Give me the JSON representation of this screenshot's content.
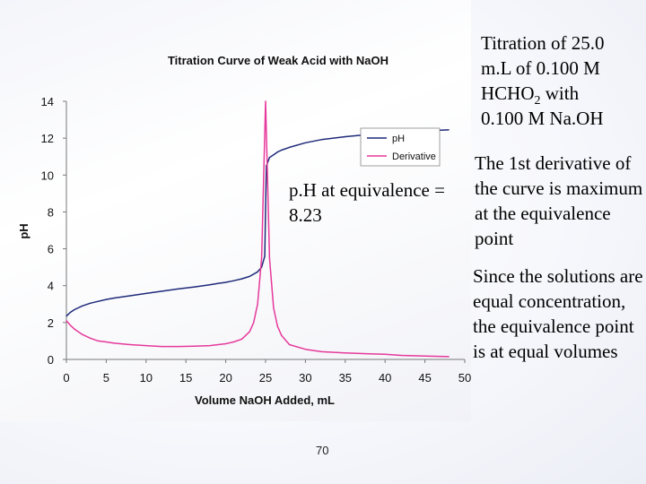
{
  "slide": {
    "titration_lines": [
      "Titration of  25.0",
      "m.L of 0.100 M",
      "HCHO",
      "2",
      " with",
      "0.100 M Na.OH"
    ],
    "derivative_note": "The 1st derivative of the curve is maximum at the equivalence point",
    "equal_volume_note": "Since the solutions are equal concentration, the equivalence point is at equal volumes",
    "equivalence_annotation": "p.H at equivalence = 8.23",
    "page_number": "70"
  },
  "chart_data": {
    "type": "line",
    "title": "Titration Curve of Weak Acid with NaOH",
    "xlabel": "Volume NaOH Added, mL",
    "ylabel": "pH",
    "xlim": [
      0,
      50
    ],
    "ylim": [
      0,
      14
    ],
    "xticks": [
      "0",
      "5",
      "10",
      "15",
      "20",
      "25",
      "30",
      "35",
      "40",
      "45",
      "50"
    ],
    "yticks": [
      "0",
      "2",
      "4",
      "6",
      "8",
      "10",
      "12",
      "14"
    ],
    "legend_position": "top-right",
    "colors": {
      "ph": "#1f2a7a",
      "derivative": "#e6399b"
    },
    "series": [
      {
        "name": "pH",
        "x": [
          0,
          0.5,
          1,
          2,
          3,
          4,
          5,
          6,
          8,
          10,
          12,
          14,
          16,
          18,
          19,
          20,
          21,
          22,
          23,
          24,
          24.5,
          24.9,
          25,
          25.1,
          25.5,
          26,
          26.5,
          27,
          28,
          30,
          32,
          35,
          38,
          40,
          45,
          48
        ],
        "y": [
          2.35,
          2.55,
          2.7,
          2.9,
          3.05,
          3.15,
          3.25,
          3.33,
          3.45,
          3.58,
          3.7,
          3.82,
          3.93,
          4.05,
          4.12,
          4.18,
          4.27,
          4.37,
          4.5,
          4.75,
          5.0,
          5.6,
          8.23,
          10.5,
          10.95,
          11.1,
          11.25,
          11.35,
          11.5,
          11.75,
          11.92,
          12.08,
          12.2,
          12.27,
          12.4,
          12.45
        ]
      },
      {
        "name": "Derivative",
        "x": [
          0,
          0.5,
          1,
          2,
          3,
          4,
          5,
          6,
          8,
          10,
          12,
          14,
          16,
          18,
          20,
          21,
          22,
          23,
          23.5,
          24,
          24.5,
          25,
          25.5,
          26,
          26.5,
          27,
          28,
          30,
          32,
          35,
          38,
          40,
          42,
          45,
          48
        ],
        "y": [
          2.1,
          1.85,
          1.65,
          1.35,
          1.15,
          1.0,
          0.95,
          0.88,
          0.8,
          0.75,
          0.7,
          0.7,
          0.72,
          0.75,
          0.85,
          0.95,
          1.1,
          1.5,
          2.0,
          3.0,
          5.5,
          14,
          5.5,
          2.8,
          1.8,
          1.3,
          0.8,
          0.55,
          0.42,
          0.35,
          0.3,
          0.28,
          0.22,
          0.18,
          0.15
        ]
      }
    ]
  }
}
